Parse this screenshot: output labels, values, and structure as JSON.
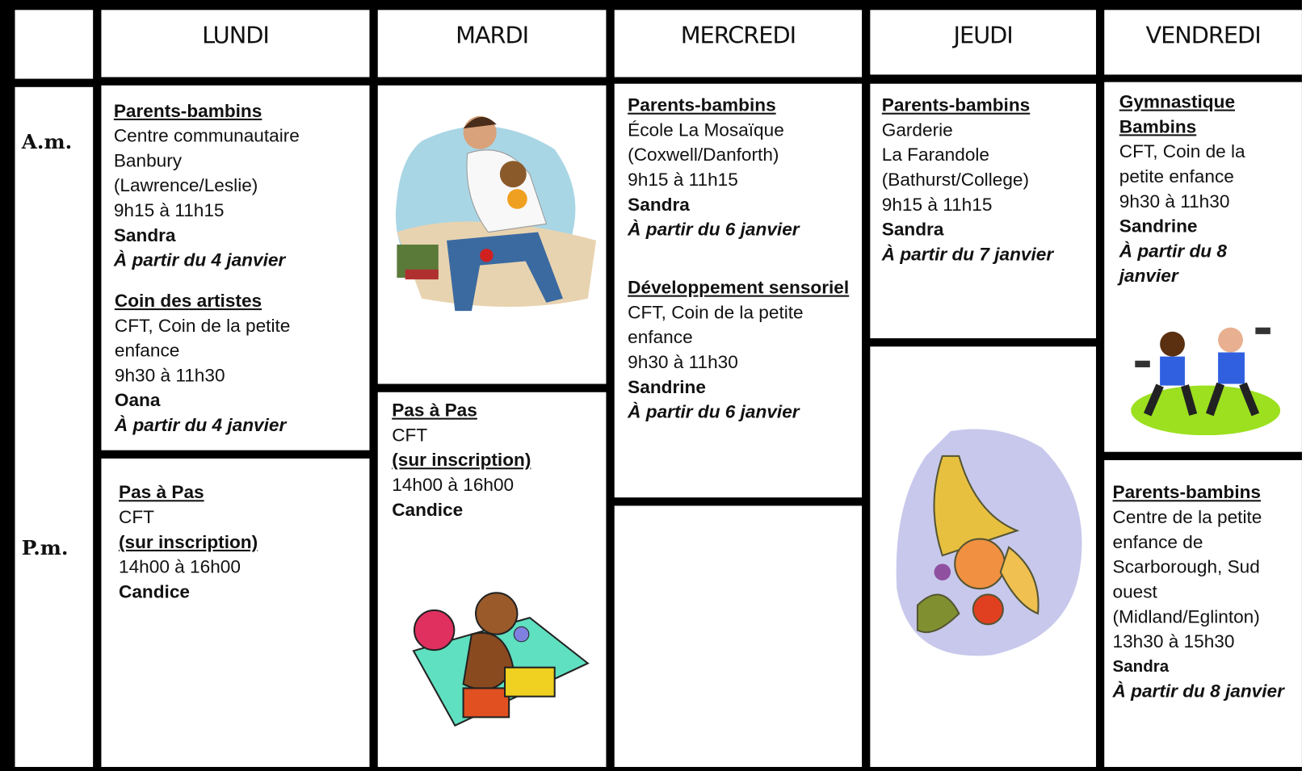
{
  "header": {
    "days": [
      "LUNDI",
      "MARDI",
      "MERCREDI",
      "JEUDI",
      "VENDREDI"
    ]
  },
  "rows": [
    "A.m.",
    "P.m."
  ],
  "columns": [
    {
      "am": [
        {
          "lines": [
            {
              "text": "Parents-bambins",
              "style": "title"
            },
            {
              "text": "Centre communautaire Banbury",
              "style": "plain"
            },
            {
              "text": "(Lawrence/Leslie)",
              "style": "plain"
            },
            {
              "text": "9h15 à 11h15",
              "style": "plain"
            },
            {
              "text": "Sandra",
              "style": "bold"
            },
            {
              "text": "À partir du 4 janvier",
              "style": "bold-italic"
            }
          ]
        },
        {
          "lines": [
            {
              "text": "Coin des artistes",
              "style": "title"
            },
            {
              "text": "CFT, Coin de la petite enfance",
              "style": "plain"
            },
            {
              "text": "9h30 à 11h30",
              "style": "plain"
            },
            {
              "text": "Oana",
              "style": "bold"
            },
            {
              "text": "À partir du 4 janvier",
              "style": "bold-italic"
            }
          ]
        }
      ],
      "pm": [
        {
          "lines": [
            {
              "text": "Pas à Pas",
              "style": "title"
            },
            {
              "text": "CFT",
              "style": "plain"
            },
            {
              "text": "(sur inscription)",
              "style": "bold-underline"
            },
            {
              "text": "14h00 à 16h00",
              "style": "plain"
            },
            {
              "text": "Candice",
              "style": "bold"
            }
          ]
        }
      ]
    },
    {
      "am": [],
      "pm": [
        {
          "lines": [
            {
              "text": "Pas à Pas",
              "style": "title"
            },
            {
              "text": "CFT",
              "style": "plain"
            },
            {
              "text": "(sur inscription)",
              "style": "bold-underline"
            },
            {
              "text": "14h00 à 16h00",
              "style": "plain"
            },
            {
              "text": "Candice",
              "style": "bold"
            }
          ]
        }
      ]
    },
    {
      "am": [
        {
          "lines": [
            {
              "text": "Parents-bambins",
              "style": "title"
            },
            {
              "text": "École La Mosaïque",
              "style": "plain"
            },
            {
              "text": "(Coxwell/Danforth)",
              "style": "plain"
            },
            {
              "text": "9h15 à 11h15",
              "style": "plain"
            },
            {
              "text": "Sandra",
              "style": "bold"
            },
            {
              "text": "À partir du 6 janvier",
              "style": "bold-italic"
            }
          ]
        },
        {
          "lines": [
            {
              "text": "Développement sensoriel",
              "style": "title"
            },
            {
              "text": "CFT, Coin de la petite enfance",
              "style": "plain"
            },
            {
              "text": "9h30 à 11h30",
              "style": "plain"
            },
            {
              "text": "Sandrine",
              "style": "bold"
            },
            {
              "text": "À partir du 6 janvier",
              "style": "bold-italic"
            }
          ]
        }
      ],
      "pm": []
    },
    {
      "am": [
        {
          "lines": [
            {
              "text": "Parents-bambins",
              "style": "title"
            },
            {
              "text": "Garderie",
              "style": "plain"
            },
            {
              "text": "La Farandole",
              "style": "plain"
            },
            {
              "text": "(Bathurst/College)",
              "style": "plain"
            },
            {
              "text": "9h15 à 11h15",
              "style": "plain"
            },
            {
              "text": "Sandra",
              "style": "bold"
            },
            {
              "text": "À partir du 7 janvier",
              "style": "bold-italic"
            }
          ]
        }
      ],
      "pm": []
    },
    {
      "am": [
        {
          "lines": [
            {
              "text": "Gymnastique Bambins",
              "style": "title"
            },
            {
              "text": "CFT, Coin de la petite enfance",
              "style": "plain"
            },
            {
              "text": "9h30 à 11h30",
              "style": "plain"
            },
            {
              "text": "Sandrine",
              "style": "bold"
            },
            {
              "text": "À partir du 8 janvier",
              "style": "bold-italic"
            }
          ]
        }
      ],
      "pm": [
        {
          "lines": [
            {
              "text": "Parents-bambins",
              "style": "title"
            },
            {
              "text": "Centre de la petite enfance de Scarborough, Sud ouest",
              "style": "plain"
            },
            {
              "text": "(Midland/Eglinton)",
              "style": "plain"
            },
            {
              "text": "13h30 à 15h30",
              "style": "plain"
            },
            {
              "text": "Sandra",
              "style": "bold-small"
            },
            {
              "text": "À partir du 8 janvier",
              "style": "bold-italic"
            }
          ]
        }
      ]
    }
  ]
}
